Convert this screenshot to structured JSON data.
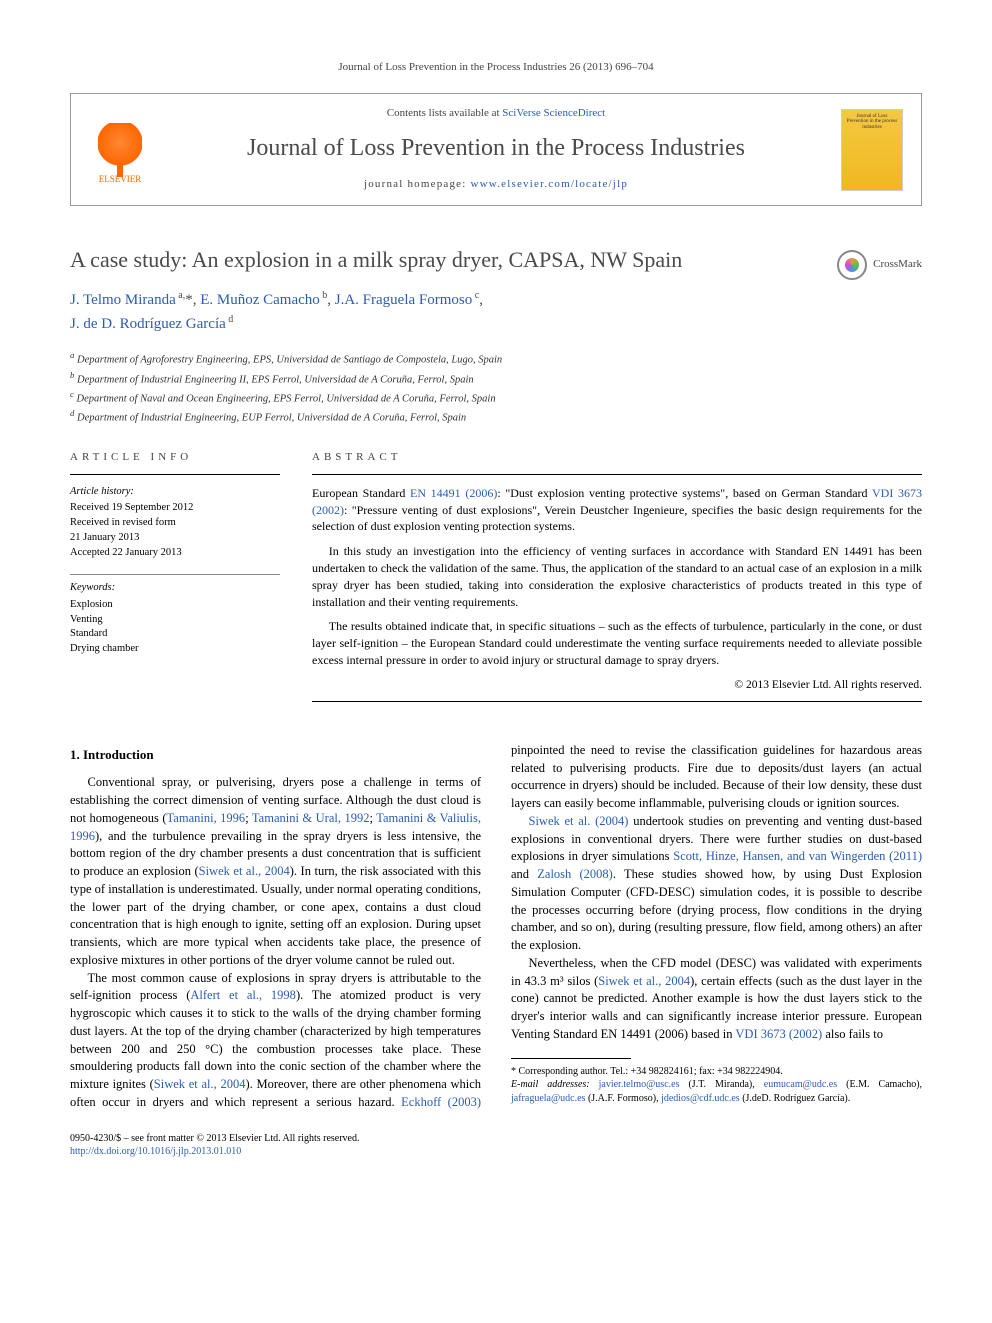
{
  "citation": "Journal of Loss Prevention in the Process Industries 26 (2013) 696–704",
  "header": {
    "contents_prefix": "Contents lists available at ",
    "contents_link": "SciVerse ScienceDirect",
    "journal_title": "Journal of Loss Prevention in the Process Industries",
    "homepage_prefix": "journal homepage: ",
    "homepage_link": "www.elsevier.com/locate/jlp",
    "publisher": "ELSEVIER",
    "cover_text": "Journal of Loss Prevention in the process industries"
  },
  "crossmark": "CrossMark",
  "title": "A case study: An explosion in a milk spray dryer, CAPSA, NW Spain",
  "authors_html": "J. Telmo Miranda <sup>a,</sup>*, E. Muñoz Camacho <sup>b</sup>, J.A. Fraguela Formoso <sup>c</sup>, J. de D. Rodríguez García <sup>d</sup>",
  "affiliations": [
    "a Department of Agroforestry Engineering, EPS, Universidad de Santiago de Compostela, Lugo, Spain",
    "b Department of Industrial Engineering II, EPS Ferrol, Universidad de A Coruña, Ferrol, Spain",
    "c Department of Naval and Ocean Engineering, EPS Ferrol, Universidad de A Coruña, Ferrol, Spain",
    "d Department of Industrial Engineering, EUP Ferrol, Universidad de A Coruña, Ferrol, Spain"
  ],
  "info": {
    "label_article_info": "ARTICLE INFO",
    "label_abstract": "ABSTRACT",
    "history_label": "Article history:",
    "history": [
      "Received 19 September 2012",
      "Received in revised form",
      "21 January 2013",
      "Accepted 22 January 2013"
    ],
    "keywords_label": "Keywords:",
    "keywords": [
      "Explosion",
      "Venting",
      "Standard",
      "Drying chamber"
    ]
  },
  "abstract": {
    "p1_a": "European Standard ",
    "p1_link1": "EN 14491 (2006)",
    "p1_b": ": \"Dust explosion venting protective systems\", based on German Standard ",
    "p1_link2": "VDI 3673 (2002)",
    "p1_c": ": \"Pressure venting of dust explosions\", Verein Deustcher Ingenieure, specifies the basic design requirements for the selection of dust explosion venting protection systems.",
    "p2": "In this study an investigation into the efficiency of venting surfaces in accordance with Standard EN 14491 has been undertaken to check the validation of the same. Thus, the application of the standard to an actual case of an explosion in a milk spray dryer has been studied, taking into consideration the explosive characteristics of products treated in this type of installation and their venting requirements.",
    "p3": "The results obtained indicate that, in specific situations – such as the effects of turbulence, particularly in the cone, or dust layer self-ignition – the European Standard could underestimate the venting surface requirements needed to alleviate possible excess internal pressure in order to avoid injury or structural damage to spray dryers.",
    "copyright": "© 2013 Elsevier Ltd. All rights reserved."
  },
  "body": {
    "h_intro": "1. Introduction",
    "p1_a": "Conventional spray, or pulverising, dryers pose a challenge in terms of establishing the correct dimension of venting surface. Although the dust cloud is not homogeneous (",
    "p1_l1": "Tamanini, 1996",
    "p1_b": "; ",
    "p1_l2": "Tamanini & Ural, 1992",
    "p1_c": "; ",
    "p1_l3": "Tamanini & Valiulis, 1996",
    "p1_d": "), and the turbulence prevailing in the spray dryers is less intensive, the bottom region of the dry chamber presents a dust concentration that is sufficient to produce an explosion (",
    "p1_l4": "Siwek et al., 2004",
    "p1_e": "). In turn, the risk associated with this type of installation is underestimated. Usually, under normal operating conditions, the lower part of the drying chamber, or cone apex, contains a dust cloud concentration that is high enough to ignite, setting off an explosion. During upset transients, which are more typical when accidents take place, the presence of explosive mixtures in other portions of the dryer volume cannot be ruled out.",
    "p2_a": "The most common cause of explosions in spray dryers is attributable to the self-ignition process (",
    "p2_l1": "Alfert et al., 1998",
    "p2_b": "). The atomized product is very hygroscopic which causes it to stick to the walls of the drying chamber forming dust layers. At the top of the drying chamber (characterized by high temperatures between 200 and 250 °C) the combustion processes take place. These smouldering products fall down into the conic section of the chamber where the mixture ignites (",
    "p2_l2": "Siwek et al., 2004",
    "p2_c": "). Moreover, there are other phenomena which often occur in dryers and which represent a serious hazard. ",
    "p2_l3": "Eckhoff (2003)",
    "p2_d": " pinpointed the need to revise the classification guidelines for hazardous areas related to pulverising products. Fire due to deposits/dust layers (an actual occurrence in dryers) should be included. Because of their low density, these dust layers can easily become inflammable, pulverising clouds or ignition sources.",
    "p3_l1": "Siwek et al. (2004)",
    "p3_a": " undertook studies on preventing and venting dust-based explosions in conventional dryers. There were further studies on dust-based explosions in dryer simulations ",
    "p3_l2": "Scott, Hinze, Hansen, and van Wingerden (2011)",
    "p3_b": " and ",
    "p3_l3": "Zalosh (2008)",
    "p3_c": ". These studies showed how, by using Dust Explosion Simulation Computer (CFD-DESC) simulation codes, it is possible to describe the processes occurring before (drying process, flow conditions in the drying chamber, and so on), during (resulting pressure, flow field, among others) an after the explosion.",
    "p4_a": "Nevertheless, when the CFD model (DESC) was validated with experiments in 43.3 m³ silos (",
    "p4_l1": "Siwek et al., 2004",
    "p4_b": "), certain effects (such as the dust layer in the cone) cannot be predicted. Another example is how the dust layers stick to the dryer's interior walls and can significantly increase interior pressure. European Venting Standard EN 14491 (2006) based in ",
    "p4_l2": "VDI 3673 (2002)",
    "p4_c": " also fails to"
  },
  "footnotes": {
    "corr": "* Corresponding author. Tel.: +34 982824161; fax: +34 982224904.",
    "email_prefix": "E-mail addresses: ",
    "emails": [
      {
        "addr": "javier.telmo@usc.es",
        "name": "(J.T. Miranda)"
      },
      {
        "addr": "eumucam@udc.es",
        "name": "(E.M. Camacho)"
      },
      {
        "addr": "jafraguela@udc.es",
        "name": "(J.A.F. Formoso)"
      },
      {
        "addr": "jdedios@cdf.udc.es",
        "name": "(J.deD. Rodríguez García)"
      }
    ]
  },
  "footer": {
    "left1": "0950-4230/$ – see front matter © 2013 Elsevier Ltd. All rights reserved.",
    "left2_link": "http://dx.doi.org/10.1016/j.jlp.2013.01.010"
  },
  "colors": {
    "link": "#2a5db0",
    "text_grey": "#4a4a4a",
    "elsevier_orange": "#ff6600"
  }
}
